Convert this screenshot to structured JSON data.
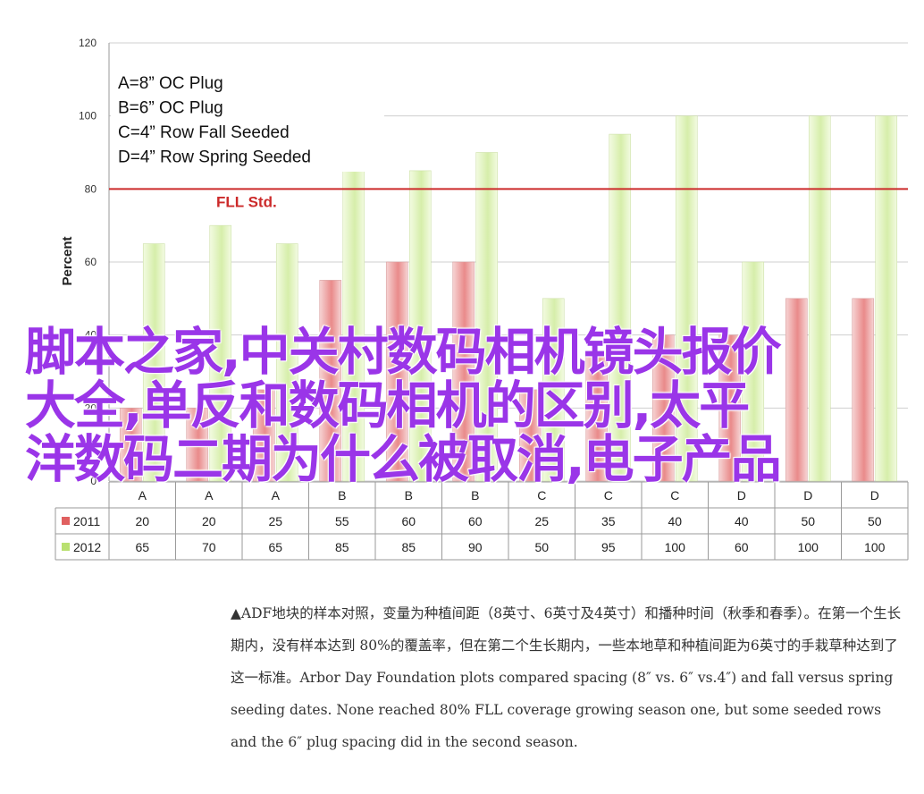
{
  "chart_data": {
    "type": "bar",
    "ylabel": "Percent",
    "ylim": [
      0,
      120
    ],
    "yticks": [
      0,
      20,
      40,
      60,
      80,
      100,
      120
    ],
    "grid": "horizontal",
    "categories": [
      "A",
      "A",
      "A",
      "B",
      "B",
      "B",
      "C",
      "C",
      "C",
      "D",
      "D",
      "D"
    ],
    "series": [
      {
        "name": "2011",
        "color": "#e06060",
        "values": [
          20,
          20,
          25,
          55,
          60,
          60,
          25,
          35,
          40,
          40,
          50,
          50
        ]
      },
      {
        "name": "2012",
        "color": "#b9e070",
        "values": [
          65,
          70,
          65,
          85,
          85,
          90,
          50,
          95,
          100,
          60,
          100,
          100
        ]
      }
    ],
    "reference_line": {
      "value": 80,
      "label": "FLL Std.",
      "color": "#cc2a2a"
    },
    "legend_box": [
      "A=8” OC Plug",
      "B=6” OC Plug",
      "C=4” Row Fall Seeded",
      "D=4” Row Spring Seeded"
    ],
    "data_table": true
  },
  "overlay_title": [
    "脚本之家,中关村数码相机镜头报价",
    "大全,单反和数码相机的区别,太平",
    "洋数码二期为什么被取消,电子产品"
  ],
  "caption": "▲ADF地块的样本对照，变量为种植间距（8英寸、6英寸及4英寸）和播种时间（秋季和春季）。在第一个生长期内，没有样本达到 80%的覆盖率，但在第二个生长期内，一些本地草和种植间距为6英寸的手栽草种达到了这一标准。Arbor Day Foundation plots compared spacing (8″ vs. 6″ vs.4″) and fall versus spring seeding dates. None reached 80% FLL coverage growing season one, but some seeded rows and the 6″ plug spacing did in the second season."
}
